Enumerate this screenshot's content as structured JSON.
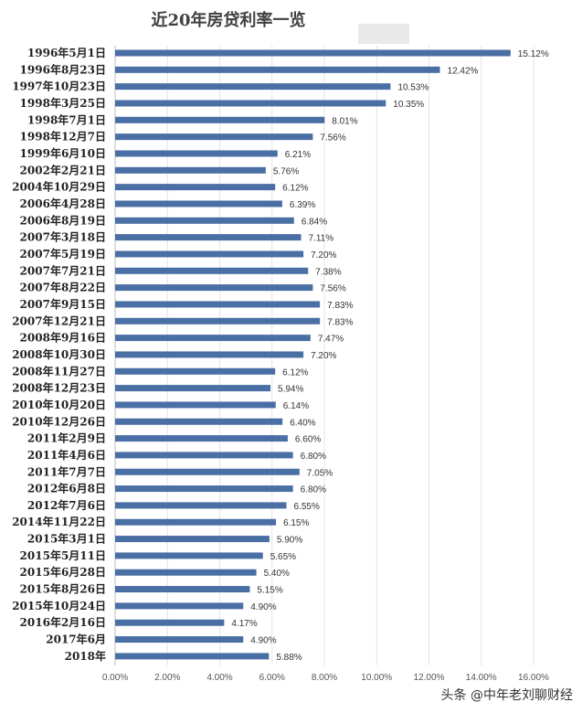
{
  "chart_data": {
    "type": "bar",
    "orientation": "horizontal",
    "title": "近20年房贷利率一览",
    "categories": [
      "1996年5月1日",
      "1996年8月23日",
      "1997年10月23日",
      "1998年3月25日",
      "1998年7月1日",
      "1998年12月7日",
      "1999年6月10日",
      "2002年2月21日",
      "2004年10月29日",
      "2006年4月28日",
      "2006年8月19日",
      "2007年3月18日",
      "2007年5月19日",
      "2007年7月21日",
      "2007年8月22日",
      "2007年9月15日",
      "2007年12月21日",
      "2008年9月16日",
      "2008年10月30日",
      "2008年11月27日",
      "2008年12月23日",
      "2010年10月20日",
      "2010年12月26日",
      "2011年2月9日",
      "2011年4月6日",
      "2011年7月7日",
      "2012年6月8日",
      "2012年7月6日",
      "2014年11月22日",
      "2015年3月1日",
      "2015年5月11日",
      "2015年6月28日",
      "2015年8月26日",
      "2015年10月24日",
      "2016年2月16日",
      "2017年6月",
      "2018年"
    ],
    "values": [
      15.12,
      12.42,
      10.53,
      10.35,
      8.01,
      7.56,
      6.21,
      5.76,
      6.12,
      6.39,
      6.84,
      7.11,
      7.2,
      7.38,
      7.56,
      7.83,
      7.83,
      7.47,
      7.2,
      6.12,
      5.94,
      6.14,
      6.4,
      6.6,
      6.8,
      7.05,
      6.8,
      6.55,
      6.15,
      5.9,
      5.65,
      5.4,
      5.15,
      4.9,
      4.17,
      4.9,
      5.88
    ],
    "value_labels": [
      "15.12%",
      "12.42%",
      "10.53%",
      "10.35%",
      "8.01%",
      "7.56%",
      "6.21%",
      "5.76%",
      "6.12%",
      "6.39%",
      "6.84%",
      "7.11%",
      "7.20%",
      "7.38%",
      "7.56%",
      "7.83%",
      "7.83%",
      "7.47%",
      "7.20%",
      "6.12%",
      "5.94%",
      "6.14%",
      "6.40%",
      "6.60%",
      "6.80%",
      "7.05%",
      "6.80%",
      "6.55%",
      "6.15%",
      "5.90%",
      "5.65%",
      "5.40%",
      "5.15%",
      "4.90%",
      "4.17%",
      "4.90%",
      "5.88%"
    ],
    "x_ticks": [
      "0.00%",
      "2.00%",
      "4.00%",
      "6.00%",
      "8.00%",
      "10.00%",
      "12.00%",
      "14.00%",
      "16.00%"
    ],
    "xlim": [
      0,
      16
    ],
    "grid": "vertical",
    "bar_color": "#4a6fa5"
  },
  "watermark": "头条 @中年老刘聊财经"
}
